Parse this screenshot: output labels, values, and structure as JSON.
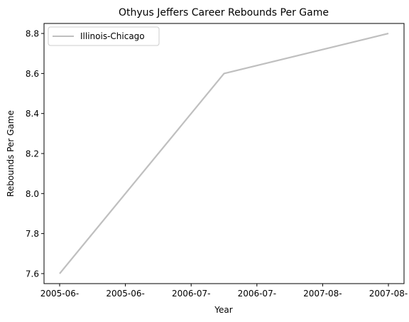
{
  "chart_data": {
    "type": "line",
    "title": "Othyus Jeffers Career Rebounds Per Game",
    "xlabel": "Year",
    "ylabel": "Rebounds Per Game",
    "x_tick_labels": [
      "2005-06-",
      "2005-06-",
      "2006-07-",
      "2006-07-",
      "2007-08-",
      "2007-08-"
    ],
    "y_ticks": [
      7.6,
      7.8,
      8.0,
      8.2,
      8.4,
      8.6,
      8.8
    ],
    "ylim": [
      7.55,
      8.85
    ],
    "legend_position": "upper-left",
    "grid": false,
    "series": [
      {
        "name": "Illinois-Chicago",
        "color": "#bfbfbf",
        "x": [
          "2005-06",
          "2006-07",
          "2007-08"
        ],
        "y": [
          7.6,
          8.6,
          8.8
        ]
      }
    ]
  }
}
